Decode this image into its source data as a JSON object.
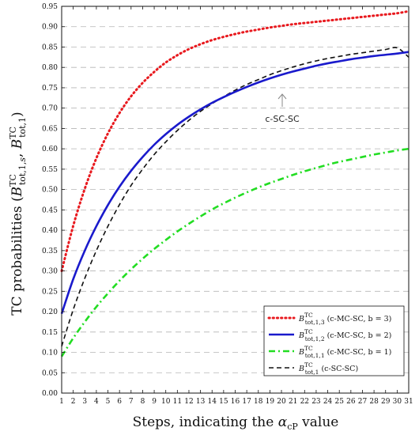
{
  "chart_data": {
    "type": "line",
    "xlabel": "Steps, indicating the αcP value",
    "ylabel": "TC probabilities (B TC tot,1,s , B TC tot,1 )",
    "xlim": [
      1,
      31
    ],
    "ylim": [
      0,
      0.95
    ],
    "x_ticks": [
      1,
      2,
      3,
      4,
      5,
      6,
      7,
      8,
      9,
      10,
      11,
      12,
      13,
      14,
      15,
      16,
      17,
      18,
      19,
      20,
      21,
      22,
      23,
      24,
      25,
      26,
      27,
      28,
      29,
      30,
      31
    ],
    "y_ticks": [
      0,
      0.05,
      0.1,
      0.15,
      0.2,
      0.25,
      0.3,
      0.35,
      0.4,
      0.45,
      0.5,
      0.55,
      0.6,
      0.65,
      0.7,
      0.75,
      0.8,
      0.85,
      0.9,
      0.95
    ],
    "grid": "horizontal dashed",
    "legend_position": "bottom-right",
    "annotation": "c-SC-SC",
    "x": [
      1,
      2,
      3,
      4,
      5,
      6,
      7,
      8,
      9,
      10,
      11,
      12,
      13,
      14,
      15,
      16,
      17,
      18,
      19,
      20,
      21,
      22,
      23,
      24,
      25,
      26,
      27,
      28,
      29,
      30,
      31
    ],
    "series": [
      {
        "name": "(c-MC-SC, b = 3)",
        "legend_symbol": "B TC tot,1,3",
        "color": "#e8191e",
        "style": "dotted",
        "values": [
          0.3,
          0.411,
          0.502,
          0.577,
          0.638,
          0.688,
          0.729,
          0.762,
          0.789,
          0.812,
          0.83,
          0.845,
          0.857,
          0.867,
          0.875,
          0.882,
          0.888,
          0.893,
          0.898,
          0.902,
          0.906,
          0.909,
          0.912,
          0.915,
          0.918,
          0.921,
          0.924,
          0.927,
          0.93,
          0.933,
          0.938
        ]
      },
      {
        "name": "(c-MC-SC, b = 2)",
        "legend_symbol": "B TC tot,1,2",
        "color": "#1a1acc",
        "style": "solid",
        "values": [
          0.195,
          0.28,
          0.35,
          0.41,
          0.462,
          0.507,
          0.546,
          0.58,
          0.61,
          0.636,
          0.659,
          0.679,
          0.697,
          0.713,
          0.727,
          0.74,
          0.752,
          0.763,
          0.773,
          0.782,
          0.79,
          0.797,
          0.804,
          0.81,
          0.815,
          0.82,
          0.824,
          0.828,
          0.831,
          0.834,
          0.838
        ]
      },
      {
        "name": "(c-MC-SC, b = 1)",
        "legend_symbol": "B TC tot,1,1",
        "color": "#22dd22",
        "style": "dashdot",
        "values": [
          0.09,
          0.135,
          0.175,
          0.212,
          0.245,
          0.276,
          0.304,
          0.33,
          0.354,
          0.376,
          0.397,
          0.416,
          0.434,
          0.451,
          0.466,
          0.48,
          0.493,
          0.505,
          0.516,
          0.526,
          0.536,
          0.545,
          0.553,
          0.561,
          0.568,
          0.574,
          0.58,
          0.586,
          0.591,
          0.596,
          0.6
        ]
      },
      {
        "name": "(c-SC-SC)",
        "legend_symbol": "B TC tot,1",
        "color": "#111111",
        "style": "dashed",
        "values": [
          0.115,
          0.205,
          0.282,
          0.35,
          0.41,
          0.463,
          0.51,
          0.55,
          0.586,
          0.617,
          0.645,
          0.67,
          0.692,
          0.711,
          0.728,
          0.744,
          0.758,
          0.77,
          0.782,
          0.792,
          0.801,
          0.809,
          0.816,
          0.822,
          0.827,
          0.832,
          0.836,
          0.84,
          0.844,
          0.848,
          0.825
        ]
      }
    ]
  }
}
